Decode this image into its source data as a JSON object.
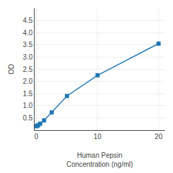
{
  "chart_data": {
    "type": "line",
    "x": [
      0,
      0.156,
      0.312,
      0.625,
      1.25,
      2.5,
      5,
      10,
      20
    ],
    "values": [
      0.158,
      0.183,
      0.205,
      0.265,
      0.398,
      0.725,
      1.4,
      2.25,
      3.55
    ],
    "xlabel": "Human Pepsin\nConcentration (ng/ml)",
    "ylabel": "OD",
    "xlim": [
      -0.3,
      21
    ],
    "ylim": [
      0,
      5.0
    ],
    "xticks": [
      0,
      10,
      20
    ],
    "yticks": [
      0.5,
      {
        "value": 1,
        "label": "1.0"
      },
      1.5,
      {
        "value": 2,
        "label": "2.0"
      },
      2.5,
      {
        "value": 3,
        "label": "3.0"
      },
      3.5,
      {
        "value": 4,
        "label": "4.0"
      },
      4.5
    ],
    "grid": true,
    "marker": "square"
  }
}
